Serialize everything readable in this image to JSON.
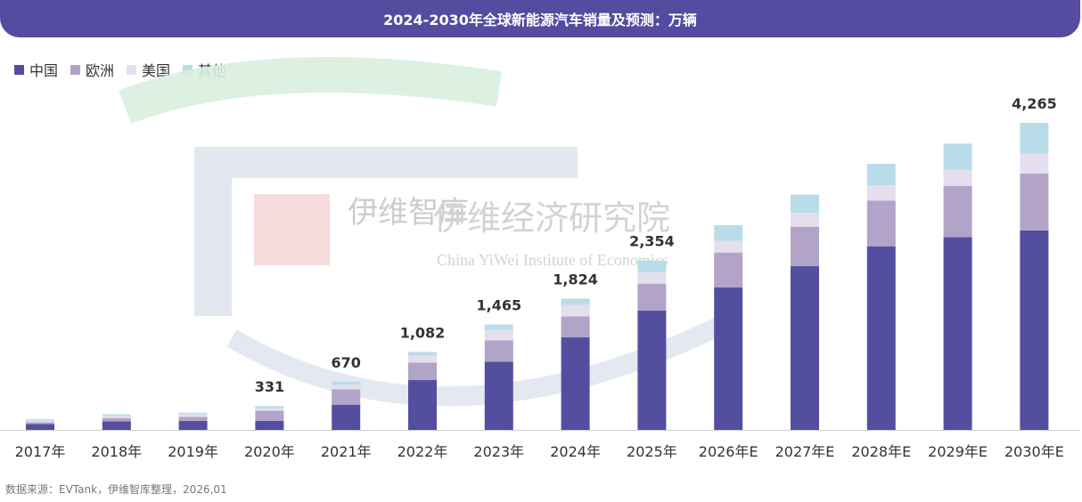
{
  "title": "2024-2030年全球新能源汽车销量及预测：万辆",
  "source": "数据来源：EVTank，伊维智库整理，2026,01",
  "watermark": {
    "cn": "伊维经济研究院",
    "short": "伊维智库",
    "en": "China YiWei Institute of Economics",
    "logo": "EVTank"
  },
  "colors": {
    "title_bg": "#554ba0",
    "中国": "#544ea0",
    "欧洲": "#b2a3c8",
    "美国": "#e4dfed",
    "其他": "#b8dde8"
  },
  "chart_data": {
    "type": "bar",
    "stacked": true,
    "title": "2024-2030年全球新能源汽车销量及预测：万辆",
    "categories": [
      "2017年",
      "2018年",
      "2019年",
      "2020年",
      "2021年",
      "2022年",
      "2023年",
      "2024年",
      "2025年",
      "2026年E",
      "2027年E",
      "2028年E",
      "2029年E",
      "2030年E"
    ],
    "series": [
      {
        "name": "中国",
        "values": [
          82,
          119,
          124,
          127,
          350,
          692,
          947,
          1285,
          1656,
          1978,
          2274,
          2550,
          2677,
          2770
        ]
      },
      {
        "name": "欧洲",
        "values": [
          25,
          46,
          57,
          140,
          214,
          242,
          297,
          292,
          375,
          486,
          548,
          634,
          710,
          790
        ]
      },
      {
        "name": "美国",
        "values": [
          21,
          33,
          37,
          33,
          62,
          99,
          145,
          161,
          161,
          161,
          194,
          215,
          226,
          280
        ]
      },
      {
        "name": "其他",
        "values": [
          20,
          20,
          21,
          31,
          44,
          49,
          76,
          86,
          162,
          218,
          251,
          297,
          362,
          425
        ]
      }
    ],
    "total_labels": [
      "",
      "",
      "",
      "331",
      "670",
      "1,082",
      "1,465",
      "1,824",
      "2,354",
      "",
      "",
      "",
      "",
      "4,265"
    ],
    "ylim": [
      0,
      4500
    ],
    "grid": false,
    "legend": "top-left"
  }
}
